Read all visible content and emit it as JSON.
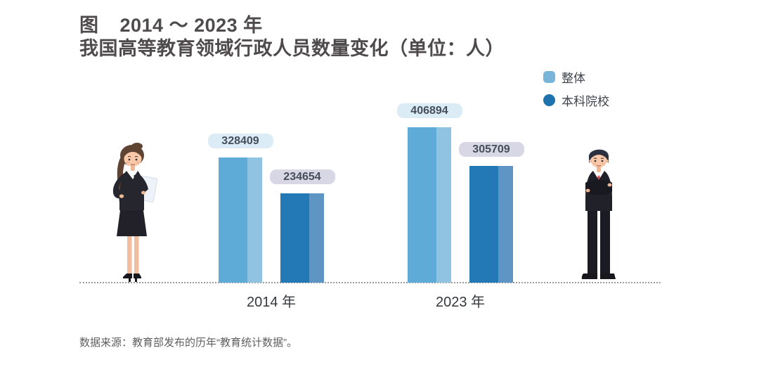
{
  "title": {
    "prefix": "图",
    "line1": "2014 ～ 2023 年",
    "line2": "我国高等教育领域行政人员数量变化（单位：人）"
  },
  "legend": [
    {
      "label": "整体",
      "color": "#79b5d8"
    },
    {
      "label": "本科院校",
      "color": "#1e72ad"
    }
  ],
  "chart_data": {
    "type": "bar",
    "title": "图 2014 ～ 2023 年 我国高等教育领域行政人员数量变化（单位：人）",
    "unit": "人",
    "categories": [
      "2014 年",
      "2023 年"
    ],
    "series": [
      {
        "name": "整体",
        "values": [
          328409,
          406894
        ],
        "color": "#5fabd7",
        "stripe_color": "#8fc3e1",
        "label_bg": "#dcecf6"
      },
      {
        "name": "本科院校",
        "values": [
          234654,
          305709
        ],
        "color": "#2379b5",
        "stripe_color": "#5e95c5",
        "label_bg": "#d7d7e5"
      }
    ],
    "ylim": [
      0,
      406894
    ],
    "grid": false,
    "data_labels": true,
    "legend_position": "top-right",
    "baseline_style": "dotted"
  },
  "source": "数据来源：教育部发布的历年“教育统计数据”。",
  "figures": {
    "left_illustration": "businesswoman-with-document",
    "right_illustration": "businessman-arms-crossed"
  }
}
